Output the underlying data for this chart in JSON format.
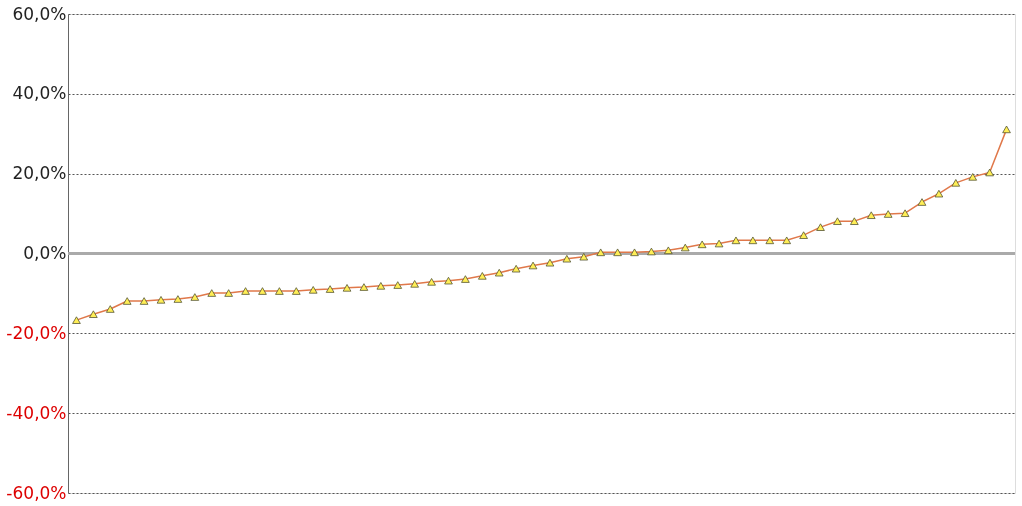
{
  "chart_data": {
    "type": "line",
    "categories": [
      null,
      null,
      null,
      null,
      null,
      null,
      null,
      null,
      null,
      null,
      null,
      null,
      null,
      null,
      null,
      null,
      null,
      null,
      null,
      null,
      null,
      null,
      null,
      null,
      null,
      null,
      null,
      null,
      null,
      null,
      null,
      null,
      null,
      null,
      null,
      null,
      null,
      null,
      null,
      null,
      null,
      null,
      null,
      null,
      null,
      null,
      null,
      null,
      null,
      null,
      null,
      null,
      null,
      null,
      null,
      null
    ],
    "series": [
      {
        "color": "#e0784a",
        "values": [
          -16.7,
          -15.2,
          -13.9,
          -11.9,
          -11.9,
          -11.6,
          -11.4,
          -10.9,
          -9.9,
          -9.9,
          -9.4,
          -9.4,
          -9.4,
          -9.4,
          -9.1,
          -8.9,
          -8.6,
          -8.4,
          -8.1,
          -7.9,
          -7.6,
          -7.1,
          -6.8,
          -6.4,
          -5.6,
          -4.8,
          -3.8,
          -3.0,
          -2.3,
          -1.3,
          -0.8,
          0.3,
          0.3,
          0.3,
          0.5,
          0.8,
          1.5,
          2.3,
          2.5,
          3.3,
          3.3,
          3.3,
          3.3,
          4.6,
          6.6,
          8.1,
          8.1,
          9.6,
          9.9,
          10.1,
          12.9,
          15.0,
          17.7,
          19.2,
          20.3,
          31.1
        ]
      }
    ],
    "ylim": [
      -60,
      60
    ],
    "yticks": [
      {
        "value": -60,
        "label": "-60,0%"
      },
      {
        "value": -40,
        "label": "-40,0%"
      },
      {
        "value": -20,
        "label": "-20,0%"
      },
      {
        "value": 0,
        "label": "0,0%"
      },
      {
        "value": 20,
        "label": "20,0%"
      },
      {
        "value": 40,
        "label": "40,0%"
      },
      {
        "value": 60,
        "label": "60,0%"
      }
    ],
    "grid": "y",
    "marker": "triangle",
    "line_style": "solid",
    "tick_labels": "y"
  }
}
